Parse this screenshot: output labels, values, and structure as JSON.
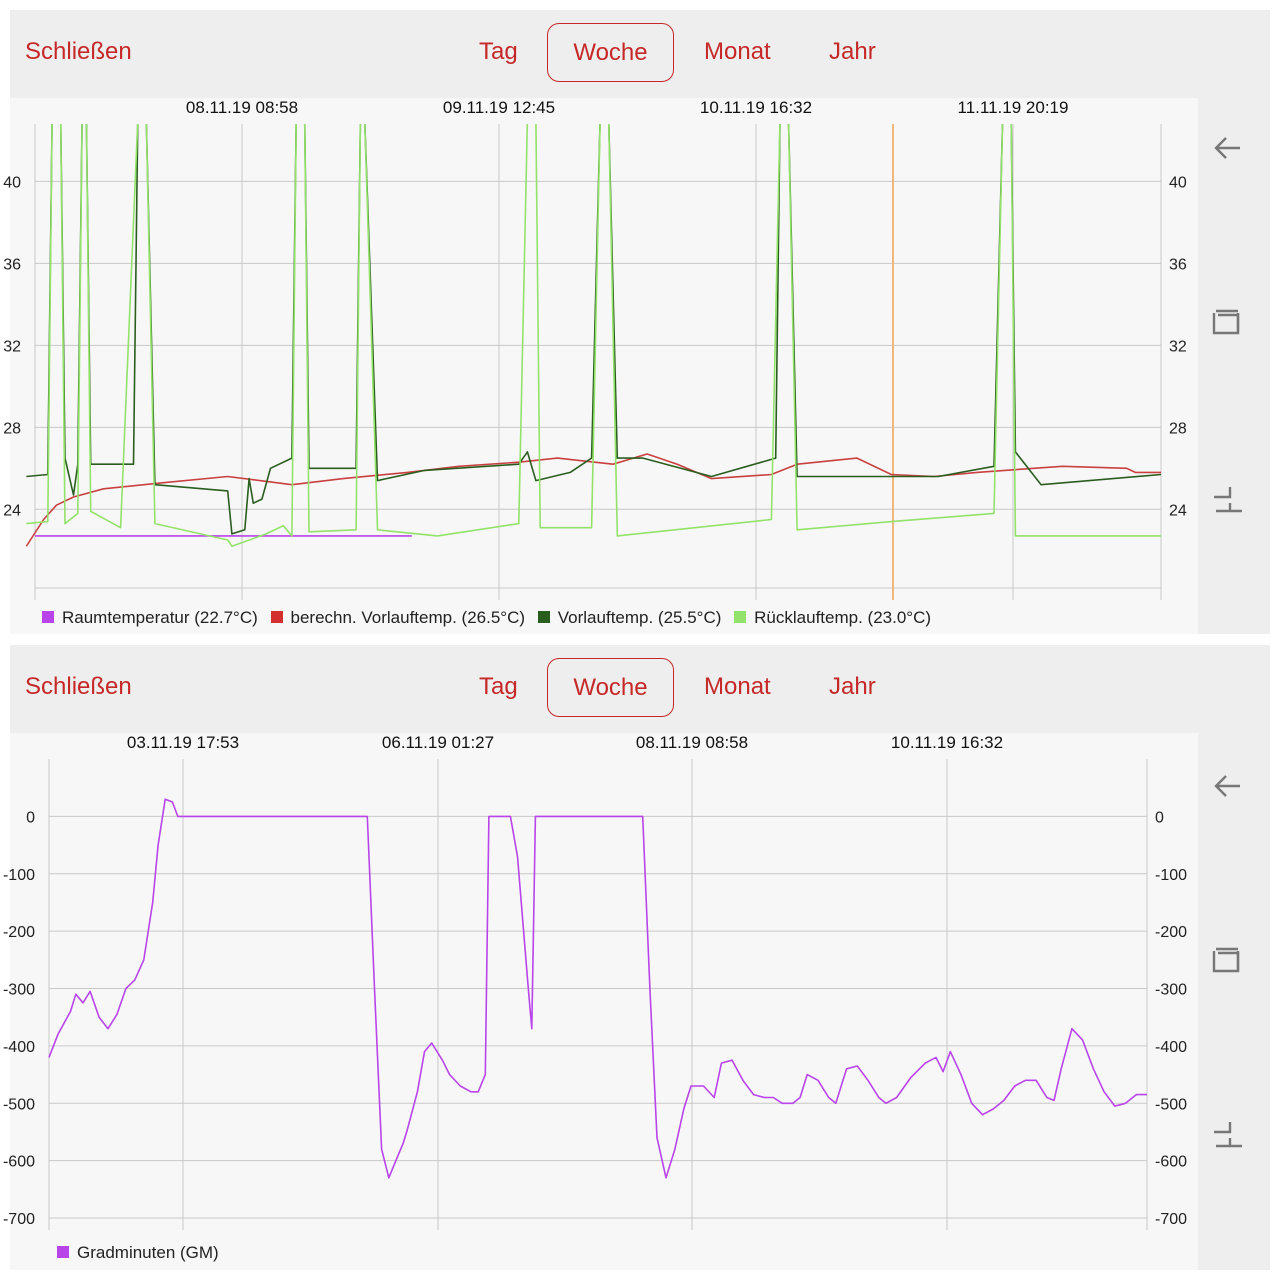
{
  "panel1": {
    "close_label": "Schließen",
    "tabs": [
      "Tag",
      "Woche",
      "Monat",
      "Jahr"
    ],
    "selected_tab": "Woche",
    "chart_data": {
      "type": "line",
      "x_tick_labels": [
        "08.11.19 08:58",
        "09.11.19 12:45",
        "10.11.19 16:32",
        "11.11.19 20:19"
      ],
      "y_ticks_left": [
        "40",
        "36",
        "32",
        "28",
        "24"
      ],
      "y_ticks_right": [
        "40",
        "36",
        "32",
        "28",
        "24"
      ],
      "ylim": [
        20,
        43
      ],
      "grid": true,
      "cursor_line": true,
      "legend_position": "bottom-left",
      "series": [
        {
          "name": "Raumtemperatur (22.7°C)",
          "color": "#b944ea",
          "points": [
            [
              0,
              22.7
            ],
            [
              0.88,
              22.7
            ]
          ]
        },
        {
          "name": "berechn. Vorlauftemp. (26.5°C)",
          "color": "#c94040",
          "points": [
            [
              -0.02,
              22.2
            ],
            [
              0.02,
              23.5
            ],
            [
              0.05,
              24.2
            ],
            [
              0.09,
              24.6
            ],
            [
              0.16,
              25.0
            ],
            [
              0.3,
              25.3
            ],
            [
              0.45,
              25.6
            ],
            [
              0.6,
              25.2
            ],
            [
              0.72,
              25.5
            ],
            [
              0.87,
              25.8
            ],
            [
              0.99,
              26.1
            ],
            [
              1.13,
              26.3
            ],
            [
              1.22,
              26.5
            ],
            [
              1.35,
              26.2
            ],
            [
              1.43,
              26.7
            ],
            [
              1.5,
              26.2
            ],
            [
              1.58,
              25.5
            ],
            [
              1.72,
              25.7
            ],
            [
              1.78,
              26.2
            ],
            [
              1.92,
              26.5
            ],
            [
              2.0,
              25.7
            ],
            [
              2.1,
              25.6
            ],
            [
              2.2,
              25.8
            ],
            [
              2.4,
              26.1
            ],
            [
              2.55,
              26.0
            ],
            [
              2.57,
              25.8
            ],
            [
              2.63,
              25.8
            ]
          ]
        },
        {
          "name": "Vorlauftemp. (25.5°C)",
          "color": "#2a5e1f",
          "points": [
            [
              -0.02,
              25.6
            ],
            [
              0.03,
              25.7
            ],
            [
              0.04,
              43
            ],
            [
              0.06,
              43
            ],
            [
              0.07,
              26.5
            ],
            [
              0.09,
              24.7
            ],
            [
              0.1,
              26.2
            ],
            [
              0.11,
              43
            ],
            [
              0.12,
              43
            ],
            [
              0.13,
              26.2
            ],
            [
              0.23,
              26.2
            ],
            [
              0.24,
              43
            ],
            [
              0.26,
              43
            ],
            [
              0.28,
              25.2
            ],
            [
              0.45,
              24.9
            ],
            [
              0.46,
              22.8
            ],
            [
              0.49,
              23.0
            ],
            [
              0.5,
              25.5
            ],
            [
              0.51,
              24.3
            ],
            [
              0.53,
              24.5
            ],
            [
              0.55,
              26.0
            ],
            [
              0.6,
              26.5
            ],
            [
              0.61,
              43
            ],
            [
              0.63,
              43
            ],
            [
              0.64,
              26.0
            ],
            [
              0.75,
              26.0
            ],
            [
              0.76,
              43
            ],
            [
              0.77,
              43
            ],
            [
              0.8,
              25.4
            ],
            [
              0.91,
              25.9
            ],
            [
              1.13,
              26.2
            ],
            [
              1.15,
              26.8
            ],
            [
              1.17,
              25.4
            ],
            [
              1.25,
              25.8
            ],
            [
              1.3,
              26.5
            ],
            [
              1.32,
              43
            ],
            [
              1.34,
              43
            ],
            [
              1.36,
              26.5
            ],
            [
              1.42,
              26.5
            ],
            [
              1.58,
              25.6
            ],
            [
              1.73,
              26.5
            ],
            [
              1.74,
              43
            ],
            [
              1.76,
              43
            ],
            [
              1.78,
              25.6
            ],
            [
              2.0,
              25.6
            ],
            [
              2.11,
              25.6
            ],
            [
              2.24,
              26.1
            ],
            [
              2.26,
              43
            ],
            [
              2.28,
              43
            ],
            [
              2.29,
              26.8
            ],
            [
              2.35,
              25.2
            ],
            [
              2.63,
              25.7
            ]
          ]
        },
        {
          "name": "Rücklauftemp. (23.0°C)",
          "color": "#93e26a",
          "points": [
            [
              -0.02,
              23.3
            ],
            [
              0.03,
              23.4
            ],
            [
              0.04,
              43
            ],
            [
              0.06,
              43
            ],
            [
              0.07,
              23.3
            ],
            [
              0.1,
              23.8
            ],
            [
              0.11,
              43
            ],
            [
              0.12,
              43
            ],
            [
              0.13,
              23.9
            ],
            [
              0.2,
              23.1
            ],
            [
              0.24,
              43
            ],
            [
              0.26,
              43
            ],
            [
              0.28,
              23.3
            ],
            [
              0.45,
              22.5
            ],
            [
              0.46,
              22.2
            ],
            [
              0.54,
              22.8
            ],
            [
              0.58,
              23.2
            ],
            [
              0.6,
              22.7
            ],
            [
              0.61,
              43
            ],
            [
              0.63,
              43
            ],
            [
              0.64,
              22.9
            ],
            [
              0.75,
              23.0
            ],
            [
              0.76,
              43
            ],
            [
              0.77,
              43
            ],
            [
              0.8,
              23.0
            ],
            [
              0.94,
              22.7
            ],
            [
              1.13,
              23.3
            ],
            [
              1.15,
              43
            ],
            [
              1.17,
              43
            ],
            [
              1.18,
              23.1
            ],
            [
              1.3,
              23.1
            ],
            [
              1.32,
              43
            ],
            [
              1.34,
              43
            ],
            [
              1.36,
              22.7
            ],
            [
              1.72,
              23.5
            ],
            [
              1.74,
              43
            ],
            [
              1.76,
              43
            ],
            [
              1.78,
              23.0
            ],
            [
              2.0,
              23.4
            ],
            [
              2.24,
              23.8
            ],
            [
              2.26,
              43
            ],
            [
              2.28,
              43
            ],
            [
              2.29,
              22.7
            ],
            [
              2.63,
              22.7
            ]
          ]
        }
      ]
    }
  },
  "panel2": {
    "close_label": "Schließen",
    "tabs": [
      "Tag",
      "Woche",
      "Monat",
      "Jahr"
    ],
    "selected_tab": "Woche",
    "chart_data": {
      "type": "line",
      "x_tick_labels": [
        "03.11.19 17:53",
        "06.11.19 01:27",
        "08.11.19 08:58",
        "10.11.19 16:32"
      ],
      "y_ticks_left": [
        "0",
        "-100",
        "-200",
        "-300",
        "-400",
        "-500",
        "-600",
        "-700"
      ],
      "y_ticks_right": [
        "0",
        "-100",
        "-200",
        "-300",
        "-400",
        "-500",
        "-600",
        "-700"
      ],
      "ylim": [
        -700,
        100
      ],
      "grid": true,
      "legend_position": "bottom-left",
      "series": [
        {
          "name": "Gradminuten (GM)",
          "color": "#b944ea",
          "points": [
            [
              0,
              -420
            ],
            [
              0.05,
              -380
            ],
            [
              0.12,
              -340
            ],
            [
              0.15,
              -310
            ],
            [
              0.19,
              -325
            ],
            [
              0.23,
              -305
            ],
            [
              0.28,
              -350
            ],
            [
              0.33,
              -370
            ],
            [
              0.38,
              -345
            ],
            [
              0.43,
              -300
            ],
            [
              0.48,
              -285
            ],
            [
              0.53,
              -250
            ],
            [
              0.58,
              -150
            ],
            [
              0.61,
              -50
            ],
            [
              0.65,
              30
            ],
            [
              0.69,
              25
            ],
            [
              0.72,
              0
            ],
            [
              1.78,
              0
            ],
            [
              1.82,
              -300
            ],
            [
              1.86,
              -580
            ],
            [
              1.9,
              -630
            ],
            [
              1.94,
              -600
            ],
            [
              1.98,
              -570
            ],
            [
              2.0,
              -550
            ],
            [
              2.06,
              -480
            ],
            [
              2.1,
              -410
            ],
            [
              2.14,
              -395
            ],
            [
              2.2,
              -425
            ],
            [
              2.24,
              -450
            ],
            [
              2.3,
              -470
            ],
            [
              2.36,
              -480
            ],
            [
              2.4,
              -480
            ],
            [
              2.44,
              -450
            ],
            [
              2.46,
              0
            ],
            [
              2.58,
              0
            ],
            [
              2.62,
              -70
            ],
            [
              2.68,
              -300
            ],
            [
              2.7,
              -370
            ],
            [
              2.72,
              0
            ],
            [
              3.32,
              0
            ],
            [
              3.36,
              -300
            ],
            [
              3.4,
              -560
            ],
            [
              3.45,
              -630
            ],
            [
              3.5,
              -580
            ],
            [
              3.55,
              -510
            ],
            [
              3.59,
              -470
            ],
            [
              3.66,
              -470
            ],
            [
              3.72,
              -490
            ],
            [
              3.76,
              -430
            ],
            [
              3.82,
              -425
            ],
            [
              3.88,
              -460
            ],
            [
              3.94,
              -485
            ],
            [
              4.0,
              -490
            ],
            [
              4.05,
              -490
            ],
            [
              4.1,
              -500
            ],
            [
              4.16,
              -500
            ],
            [
              4.2,
              -490
            ],
            [
              4.24,
              -450
            ],
            [
              4.3,
              -460
            ],
            [
              4.36,
              -490
            ],
            [
              4.4,
              -500
            ],
            [
              4.46,
              -440
            ],
            [
              4.52,
              -435
            ],
            [
              4.58,
              -460
            ],
            [
              4.64,
              -490
            ],
            [
              4.68,
              -500
            ],
            [
              4.74,
              -490
            ],
            [
              4.82,
              -455
            ],
            [
              4.9,
              -430
            ],
            [
              4.96,
              -420
            ],
            [
              5.0,
              -445
            ],
            [
              5.04,
              -410
            ],
            [
              5.1,
              -450
            ],
            [
              5.16,
              -500
            ],
            [
              5.22,
              -520
            ],
            [
              5.28,
              -510
            ],
            [
              5.34,
              -495
            ],
            [
              5.4,
              -470
            ],
            [
              5.46,
              -460
            ],
            [
              5.52,
              -460
            ],
            [
              5.58,
              -490
            ],
            [
              5.62,
              -495
            ],
            [
              5.66,
              -440
            ],
            [
              5.72,
              -370
            ],
            [
              5.78,
              -390
            ],
            [
              5.84,
              -440
            ],
            [
              5.9,
              -480
            ],
            [
              5.96,
              -505
            ],
            [
              6.02,
              -500
            ],
            [
              6.08,
              -485
            ],
            [
              6.14,
              -485
            ]
          ]
        }
      ]
    }
  }
}
